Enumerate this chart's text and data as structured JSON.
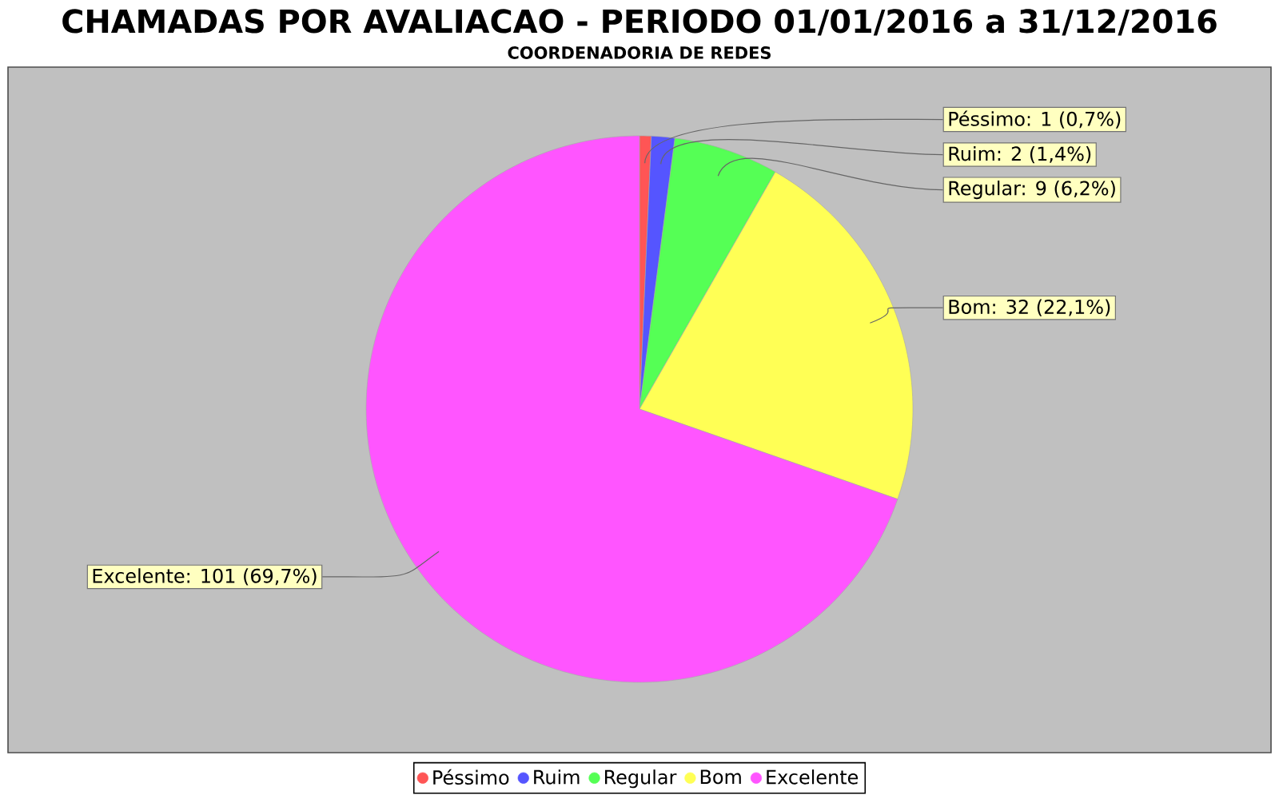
{
  "chart_data": {
    "type": "pie",
    "title": "CHAMADAS POR AVALIACAO - PERIODO 01/01/2016 a 31/12/2016",
    "subtitle": "COORDENADORIA DE REDES",
    "categories": [
      "Péssimo",
      "Ruim",
      "Regular",
      "Bom",
      "Excelente"
    ],
    "values": [
      1,
      2,
      9,
      32,
      101
    ],
    "colors": [
      "#ff5555",
      "#5555ff",
      "#55ff55",
      "#ffff55",
      "#ff55ff"
    ],
    "value_labels": [
      "Péssimo: 1 (0,7%)",
      "Ruim: 2 (1,4%)",
      "Regular: 9 (6,2%)",
      "Bom: 32 (22,1%)",
      "Excelente: 101 (69,7%)"
    ],
    "legend": "bottom"
  }
}
